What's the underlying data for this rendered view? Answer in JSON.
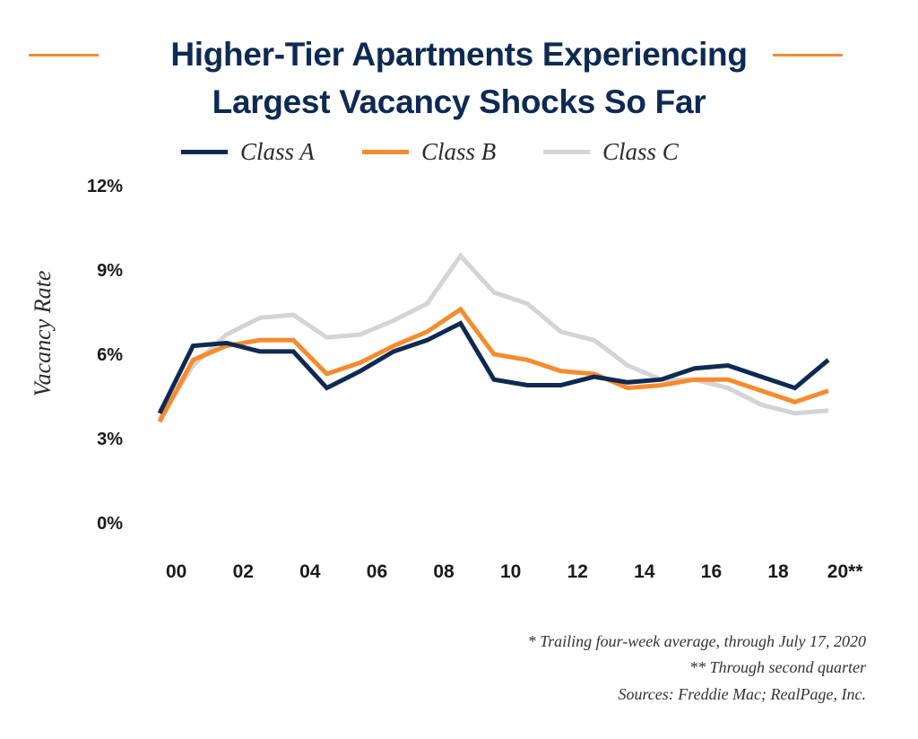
{
  "header": {
    "title_line1": "Higher-Tier Apartments Experiencing",
    "title_line2": "Largest Vacancy Shocks So Far"
  },
  "legend": [
    {
      "name": "Class A",
      "color": "#0e2a52"
    },
    {
      "name": "Class B",
      "color": "#f68b2f"
    },
    {
      "name": "Class C",
      "color": "#d2d4d6"
    }
  ],
  "footnotes": {
    "line1": "* Trailing four-week average, through July 17, 2020",
    "line2": "**  Through second quarter",
    "line3": "Sources: Freddie Mac; RealPage, Inc."
  },
  "chart_data": {
    "type": "line",
    "title": "Higher-Tier Apartments Experiencing Largest Vacancy Shocks So Far",
    "ylabel": "Vacancy Rate",
    "xlabel": "",
    "ylim": [
      0,
      12
    ],
    "y_ticks": [
      0,
      3,
      6,
      9,
      12
    ],
    "y_tick_labels": [
      "0%",
      "3%",
      "6%",
      "9%",
      "12%"
    ],
    "x_tick_labels": [
      "00",
      "02",
      "04",
      "06",
      "08",
      "10",
      "12",
      "14",
      "16",
      "18",
      "20**"
    ],
    "legend_position": "top",
    "grid": false,
    "x": [
      1999.5,
      2000.5,
      2001.5,
      2002.5,
      2003.5,
      2004.5,
      2005.5,
      2006.5,
      2007.5,
      2008.5,
      2009.5,
      2010.5,
      2011.5,
      2012.5,
      2013.5,
      2014.5,
      2015.5,
      2016.5,
      2017.5,
      2018.5,
      2019.5,
      2020.5
    ],
    "series": [
      {
        "name": "Class A",
        "color": "#0e2a52",
        "values": [
          3.9,
          6.3,
          6.4,
          6.1,
          6.1,
          4.8,
          5.4,
          6.1,
          6.5,
          7.1,
          5.1,
          4.9,
          4.9,
          5.2,
          5.0,
          5.1,
          5.5,
          5.6,
          5.2,
          4.8,
          5.8,
          null
        ]
      },
      {
        "name": "Class B",
        "color": "#f68b2f",
        "values": [
          3.6,
          5.8,
          6.3,
          6.5,
          6.5,
          5.3,
          5.7,
          6.3,
          6.8,
          7.6,
          6.0,
          5.8,
          5.4,
          5.3,
          4.8,
          4.9,
          5.1,
          5.1,
          4.7,
          4.3,
          4.7,
          null
        ]
      },
      {
        "name": "Class C",
        "color": "#d2d4d6",
        "values": [
          3.7,
          5.6,
          6.7,
          7.3,
          7.4,
          6.6,
          6.7,
          7.2,
          7.8,
          9.5,
          8.2,
          7.8,
          6.8,
          6.5,
          5.6,
          5.1,
          5.1,
          4.8,
          4.2,
          3.9,
          4.0,
          null
        ]
      }
    ]
  }
}
